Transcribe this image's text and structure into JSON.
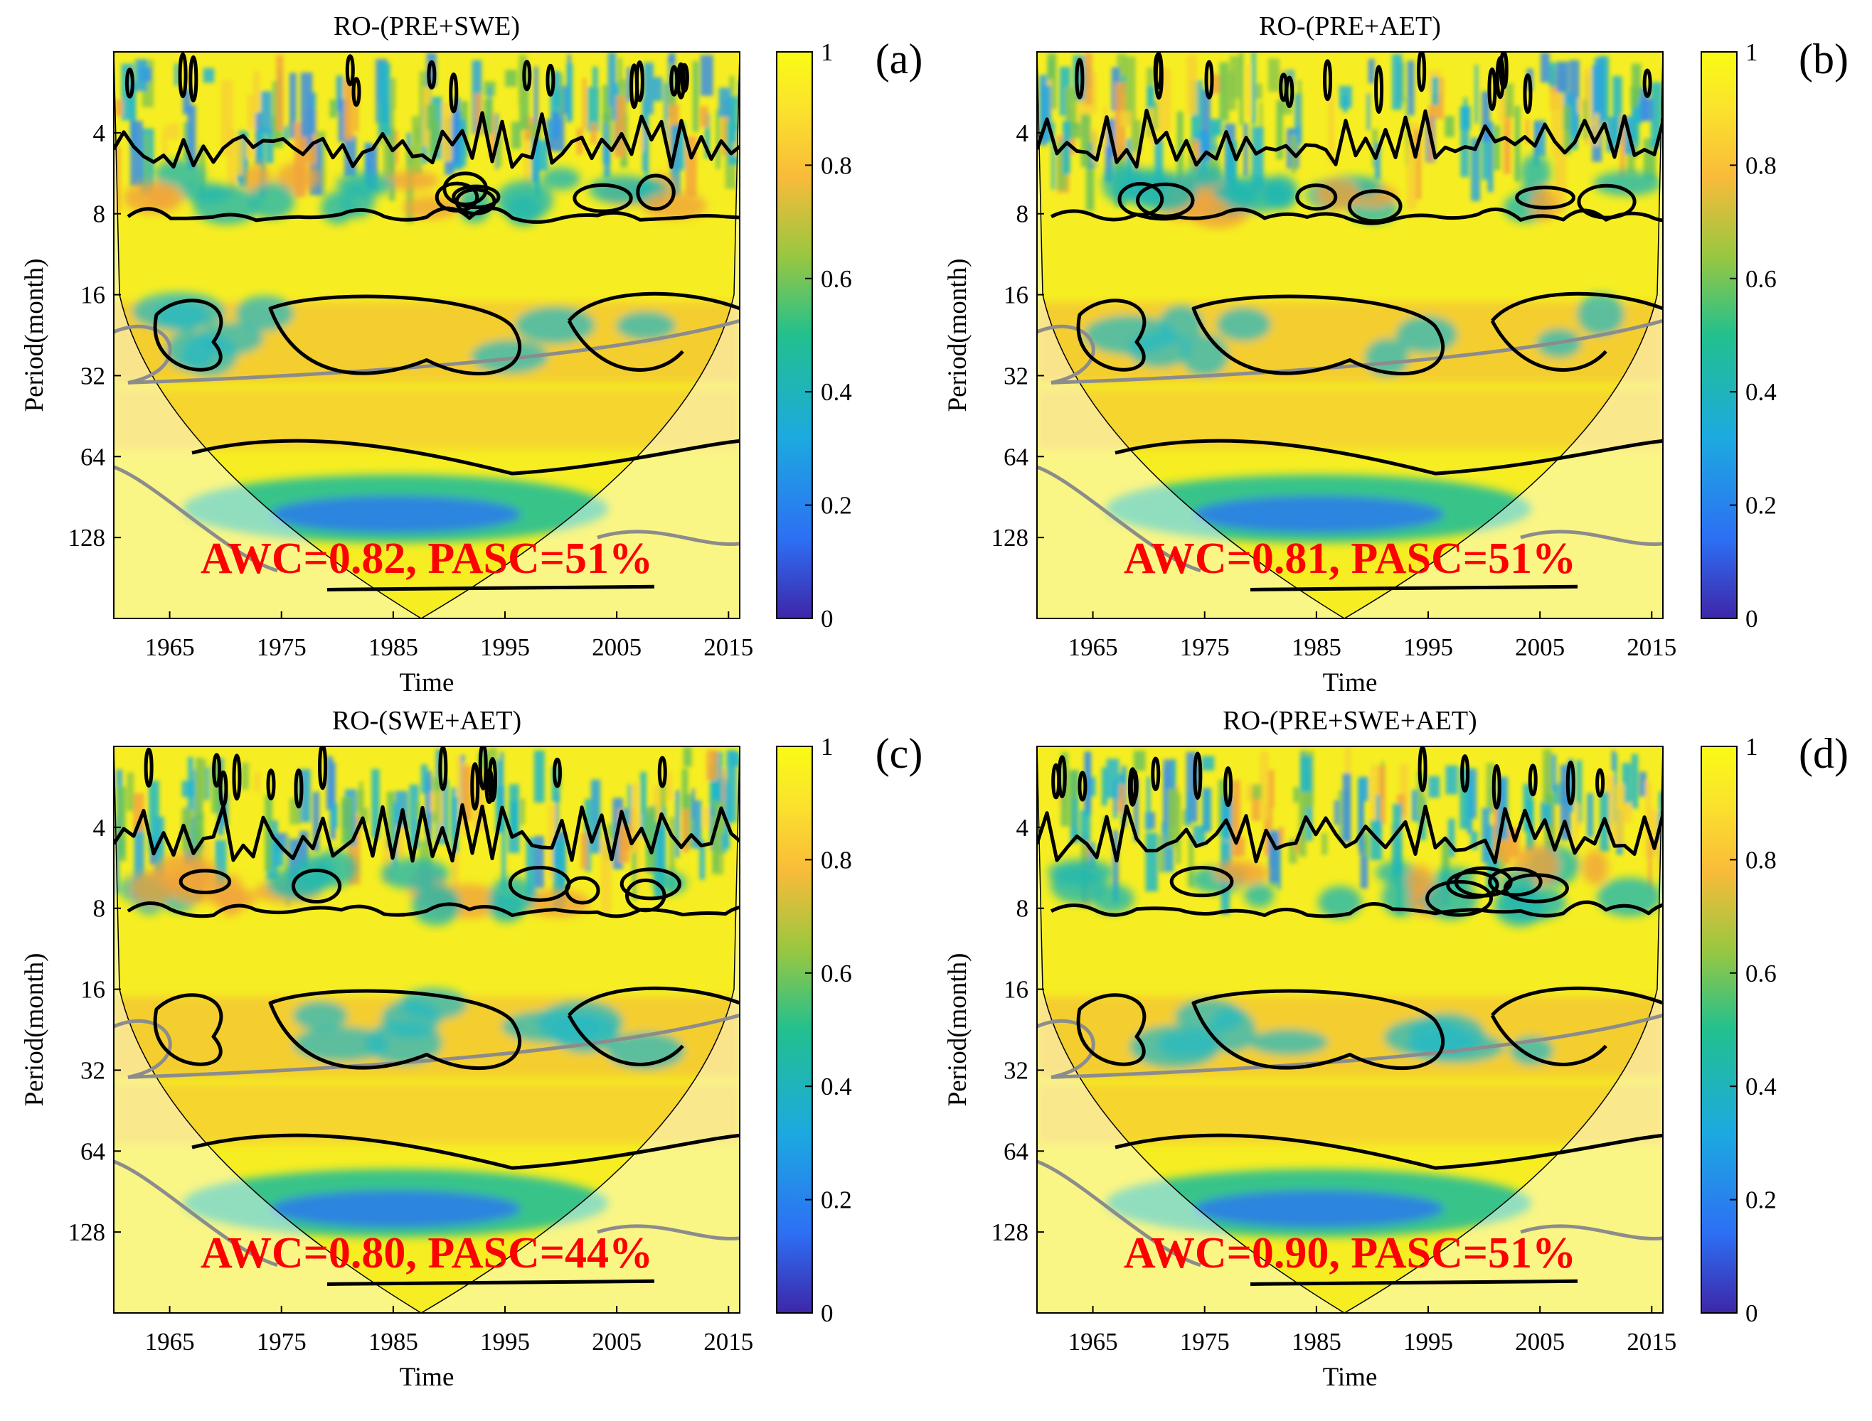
{
  "chart_data": [
    {
      "type": "heatmap",
      "chart_kind": "wavelet coherence",
      "panel_label": "(a)",
      "title": "RO-(PRE+SWE)",
      "xlabel": "Time",
      "ylabel": "Period(month)",
      "x_ticks": [
        "1965",
        "1975",
        "1985",
        "1995",
        "2005",
        "2015"
      ],
      "xlim": [
        1960,
        2016
      ],
      "y_ticks": [
        "4",
        "8",
        "16",
        "32",
        "64",
        "128"
      ],
      "ylim": [
        2,
        256
      ],
      "colorbar_ticks": [
        "0",
        "0.2",
        "0.4",
        "0.6",
        "0.8",
        "1"
      ],
      "colorbar_range": [
        0,
        1
      ],
      "annotation": "AWC=0.82, PASC=51%",
      "AWC": 0.82,
      "PASC_percent": 51
    },
    {
      "type": "heatmap",
      "chart_kind": "wavelet coherence",
      "panel_label": "(b)",
      "title": "RO-(PRE+AET)",
      "xlabel": "Time",
      "ylabel": "Period(month)",
      "x_ticks": [
        "1965",
        "1975",
        "1985",
        "1995",
        "2005",
        "2015"
      ],
      "xlim": [
        1960,
        2016
      ],
      "y_ticks": [
        "4",
        "8",
        "16",
        "32",
        "64",
        "128"
      ],
      "ylim": [
        2,
        256
      ],
      "colorbar_ticks": [
        "0",
        "0.2",
        "0.4",
        "0.6",
        "0.8",
        "1"
      ],
      "colorbar_range": [
        0,
        1
      ],
      "annotation": "AWC=0.81, PASC=51%",
      "AWC": 0.81,
      "PASC_percent": 51
    },
    {
      "type": "heatmap",
      "chart_kind": "wavelet coherence",
      "panel_label": "(c)",
      "title": "RO-(SWE+AET)",
      "xlabel": "Time",
      "ylabel": "Period(month)",
      "x_ticks": [
        "1965",
        "1975",
        "1985",
        "1995",
        "2005",
        "2015"
      ],
      "xlim": [
        1960,
        2016
      ],
      "y_ticks": [
        "4",
        "8",
        "16",
        "32",
        "64",
        "128"
      ],
      "ylim": [
        2,
        256
      ],
      "colorbar_ticks": [
        "0",
        "0.2",
        "0.4",
        "0.6",
        "0.8",
        "1"
      ],
      "colorbar_range": [
        0,
        1
      ],
      "annotation": "AWC=0.80, PASC=44%",
      "AWC": 0.8,
      "PASC_percent": 44
    },
    {
      "type": "heatmap",
      "chart_kind": "wavelet coherence",
      "panel_label": "(d)",
      "title": "RO-(PRE+SWE+AET)",
      "xlabel": "Time",
      "ylabel": "Period(month)",
      "x_ticks": [
        "1965",
        "1975",
        "1985",
        "1995",
        "2005",
        "2015"
      ],
      "xlim": [
        1960,
        2016
      ],
      "y_ticks": [
        "4",
        "8",
        "16",
        "32",
        "64",
        "128"
      ],
      "ylim": [
        2,
        256
      ],
      "colorbar_ticks": [
        "0",
        "0.2",
        "0.4",
        "0.6",
        "0.8",
        "1"
      ],
      "colorbar_range": [
        0,
        1
      ],
      "annotation": "AWC=0.90, PASC=51%",
      "AWC": 0.9,
      "PASC_percent": 51
    }
  ],
  "colors": {
    "background": "#ffffff",
    "annotation": "#ff0000",
    "contour": "#000000",
    "grey_contour": "#8c8c8c",
    "colormap": [
      "#3e26a8",
      "#2d6ff4",
      "#1caadf",
      "#22c08e",
      "#99c740",
      "#f9bb3a",
      "#fbe32c",
      "#f9fb14"
    ]
  }
}
